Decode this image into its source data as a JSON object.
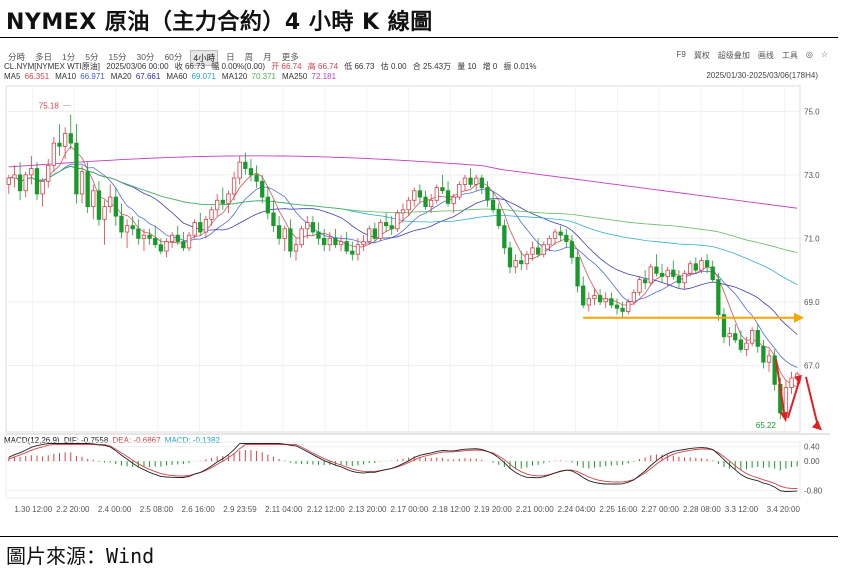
{
  "title": "NYMEX 原油（主力合約）4 小時 K 線圖",
  "source": "圖片來源：Wind",
  "toolbar": {
    "periods": [
      "分時",
      "多日",
      "1分",
      "5分",
      "15分",
      "30分",
      "60分",
      "4小時",
      "日",
      "周",
      "月",
      "更多"
    ],
    "active": "4小時",
    "right_items": [
      "F9",
      "冀权",
      "超级叠加",
      "画线",
      "工具",
      "◎",
      "☆"
    ]
  },
  "info": {
    "symbol": "CL.NYM[NYMEX WTI原油]",
    "datetime": "2025/03/06 00:00",
    "close": "收 66.73",
    "change": "幅 0.00%(0.00)",
    "open": "开 66.74",
    "high": "高 66.74",
    "low": "低 66.73",
    "chg": "估 0.00",
    "amount": "合 25.43万",
    "volume": "量 10",
    "oi_change": "增 0",
    "swing": "振 0.01%"
  },
  "date_range": "2025/01/30-2025/03/06(178H4)",
  "ma_legend": [
    {
      "label": "MA5",
      "value": "66.351",
      "color": "#d6404a"
    },
    {
      "label": "MA10",
      "value": "66.971",
      "color": "#3f5bd8"
    },
    {
      "label": "MA20",
      "value": "67.661",
      "color": "#2b2ba8"
    },
    {
      "label": "MA60",
      "value": "69.071",
      "color": "#1fa5c9"
    },
    {
      "label": "MA120",
      "value": "70.371",
      "color": "#52b152"
    },
    {
      "label": "MA250",
      "value": "72.181",
      "color": "#c040c0"
    }
  ],
  "macd_legend": {
    "name": "MACD(12,26,9)",
    "dif": "DIF: -0.7558",
    "dea": "DEA: -0.6867",
    "macd": "MACD: -0.1382",
    "dif_color": "#222222",
    "dea_color": "#d6404a",
    "macd_color": "#1fa5c9"
  },
  "colors": {
    "up": "#d6404a",
    "down": "#189a2a",
    "arrow_orange": "#f5a600",
    "arrow_red": "#e02020"
  },
  "chart_data": {
    "type": "candlestick",
    "title": "NYMEX 原油（主力合約）4 小時 K 線圖",
    "ylim": [
      64.9,
      75.8
    ],
    "price_ticks": [
      "75.0",
      "73.0",
      "71.0",
      "69.0",
      "67.0"
    ],
    "macd_ylim": [
      -1.0,
      0.52
    ],
    "macd_ticks": [
      "0.40",
      "0.00",
      "-0.80"
    ],
    "x_ticks": [
      "1.30 12:00",
      "2.2 20:00",
      "2.4 00:00",
      "2.5 08:00",
      "2.6 16:00",
      "2.9 23:59",
      "2.11 04:00",
      "2.12 12:00",
      "2.13 20:00",
      "2.17 00:00",
      "2.18 12:00",
      "2.19 20:00",
      "2.21 00:00",
      "2.24 04:00",
      "2.25 16:00",
      "2.27 00:00",
      "2.28 08:00",
      "3.3 12:00",
      "3.4 20:00"
    ],
    "max_label": "75.18",
    "min_label": "65.22",
    "candles": [
      [
        72.7,
        73.0,
        72.4,
        72.9
      ],
      [
        72.9,
        73.3,
        72.6,
        73.0
      ],
      [
        73.0,
        73.4,
        72.2,
        72.5
      ],
      [
        72.5,
        73.1,
        72.3,
        73.0
      ],
      [
        73.0,
        73.6,
        72.7,
        73.2
      ],
      [
        73.2,
        73.4,
        72.2,
        72.4
      ],
      [
        72.4,
        72.9,
        72.0,
        72.8
      ],
      [
        72.8,
        73.5,
        72.6,
        73.3
      ],
      [
        73.3,
        74.2,
        73.1,
        74.0
      ],
      [
        74.0,
        74.6,
        73.6,
        73.9
      ],
      [
        73.9,
        74.5,
        73.5,
        74.3
      ],
      [
        74.3,
        74.9,
        73.8,
        74.0
      ],
      [
        74.0,
        74.6,
        72.1,
        72.4
      ],
      [
        72.4,
        73.3,
        72.1,
        73.1
      ],
      [
        73.1,
        73.4,
        71.8,
        72.0
      ],
      [
        72.0,
        72.7,
        71.6,
        72.5
      ],
      [
        72.5,
        72.8,
        71.4,
        71.6
      ],
      [
        71.6,
        72.2,
        70.8,
        72.0
      ],
      [
        72.0,
        72.7,
        71.8,
        72.3
      ],
      [
        72.3,
        72.6,
        71.4,
        71.7
      ],
      [
        71.7,
        72.1,
        71.0,
        71.2
      ],
      [
        71.2,
        71.6,
        70.7,
        71.4
      ],
      [
        71.4,
        71.7,
        71.1,
        71.3
      ],
      [
        71.3,
        71.6,
        70.8,
        71.0
      ],
      [
        71.0,
        71.3,
        70.6,
        71.1
      ],
      [
        71.1,
        71.3,
        70.8,
        71.0
      ],
      [
        71.0,
        71.4,
        70.7,
        70.8
      ],
      [
        70.8,
        71.0,
        70.5,
        70.6
      ],
      [
        70.6,
        71.0,
        70.4,
        70.9
      ],
      [
        70.9,
        71.2,
        70.7,
        71.1
      ],
      [
        71.1,
        71.4,
        70.8,
        70.9
      ],
      [
        70.9,
        71.2,
        70.6,
        70.7
      ],
      [
        70.7,
        71.2,
        70.6,
        71.1
      ],
      [
        71.1,
        71.6,
        71.0,
        71.5
      ],
      [
        71.5,
        71.8,
        71.1,
        71.2
      ],
      [
        71.2,
        71.7,
        71.0,
        71.6
      ],
      [
        71.6,
        72.0,
        71.4,
        71.9
      ],
      [
        71.9,
        72.4,
        71.7,
        72.2
      ],
      [
        72.2,
        72.6,
        71.9,
        72.1
      ],
      [
        72.1,
        72.5,
        71.8,
        72.4
      ],
      [
        72.4,
        73.1,
        72.2,
        72.9
      ],
      [
        72.9,
        73.6,
        72.7,
        73.4
      ],
      [
        73.4,
        73.7,
        73.0,
        73.2
      ],
      [
        73.2,
        73.5,
        72.8,
        73.0
      ],
      [
        73.0,
        73.3,
        72.6,
        72.8
      ],
      [
        72.8,
        73.0,
        72.1,
        72.3
      ],
      [
        72.3,
        72.6,
        71.6,
        71.8
      ],
      [
        71.8,
        72.2,
        71.2,
        71.4
      ],
      [
        71.4,
        71.7,
        70.8,
        71.0
      ],
      [
        71.0,
        71.4,
        70.6,
        71.3
      ],
      [
        71.3,
        71.6,
        70.4,
        70.6
      ],
      [
        70.6,
        71.0,
        70.3,
        70.8
      ],
      [
        70.8,
        71.4,
        70.7,
        71.3
      ],
      [
        71.3,
        71.7,
        71.0,
        71.5
      ],
      [
        71.5,
        71.7,
        71.1,
        71.2
      ],
      [
        71.2,
        71.5,
        70.8,
        71.0
      ],
      [
        71.0,
        71.3,
        70.6,
        70.8
      ],
      [
        70.8,
        71.2,
        70.6,
        71.0
      ],
      [
        71.0,
        71.3,
        70.7,
        70.8
      ],
      [
        70.8,
        71.1,
        70.6,
        70.9
      ],
      [
        70.9,
        71.2,
        70.5,
        70.6
      ],
      [
        70.6,
        70.9,
        70.3,
        70.5
      ],
      [
        70.5,
        71.0,
        70.3,
        70.8
      ],
      [
        70.8,
        71.1,
        70.6,
        70.9
      ],
      [
        70.9,
        71.4,
        70.8,
        71.3
      ],
      [
        71.3,
        71.5,
        70.9,
        71.0
      ],
      [
        71.0,
        71.6,
        70.9,
        71.5
      ],
      [
        71.5,
        71.8,
        71.2,
        71.4
      ],
      [
        71.4,
        71.7,
        71.1,
        71.3
      ],
      [
        71.3,
        71.9,
        71.2,
        71.8
      ],
      [
        71.8,
        72.1,
        71.5,
        71.9
      ],
      [
        71.9,
        72.3,
        71.7,
        72.2
      ],
      [
        72.2,
        72.6,
        72.0,
        72.5
      ],
      [
        72.5,
        72.7,
        72.1,
        72.3
      ],
      [
        72.3,
        72.5,
        71.9,
        72.0
      ],
      [
        72.0,
        72.4,
        71.8,
        72.2
      ],
      [
        72.2,
        72.7,
        72.1,
        72.6
      ],
      [
        72.6,
        73.0,
        72.4,
        72.5
      ],
      [
        72.5,
        72.8,
        72.0,
        72.1
      ],
      [
        72.1,
        72.4,
        71.8,
        72.3
      ],
      [
        72.3,
        72.8,
        72.2,
        72.7
      ],
      [
        72.7,
        73.0,
        72.5,
        72.9
      ],
      [
        72.9,
        73.2,
        72.6,
        72.7
      ],
      [
        72.7,
        73.0,
        72.5,
        72.9
      ],
      [
        72.9,
        73.0,
        72.4,
        72.6
      ],
      [
        72.6,
        72.8,
        72.0,
        72.2
      ],
      [
        72.2,
        72.5,
        71.8,
        71.9
      ],
      [
        71.9,
        72.1,
        71.3,
        71.4
      ],
      [
        71.4,
        71.6,
        70.5,
        70.7
      ],
      [
        70.7,
        70.9,
        69.9,
        70.1
      ],
      [
        70.1,
        70.5,
        69.9,
        70.3
      ],
      [
        70.3,
        70.6,
        70.0,
        70.2
      ],
      [
        70.2,
        70.6,
        70.0,
        70.5
      ],
      [
        70.5,
        70.9,
        70.3,
        70.7
      ],
      [
        70.7,
        71.0,
        70.4,
        70.5
      ],
      [
        70.5,
        70.9,
        70.4,
        70.8
      ],
      [
        70.8,
        71.1,
        70.6,
        71.0
      ],
      [
        71.0,
        71.3,
        70.8,
        71.2
      ],
      [
        71.2,
        71.4,
        70.9,
        71.1
      ],
      [
        71.1,
        71.3,
        70.7,
        70.9
      ],
      [
        70.9,
        71.1,
        70.2,
        70.4
      ],
      [
        70.4,
        70.6,
        69.3,
        69.5
      ],
      [
        69.5,
        69.8,
        68.8,
        68.9
      ],
      [
        68.9,
        69.3,
        68.7,
        69.1
      ],
      [
        69.1,
        69.4,
        68.9,
        69.2
      ],
      [
        69.2,
        69.4,
        68.9,
        69.0
      ],
      [
        69.0,
        69.3,
        68.8,
        69.1
      ],
      [
        69.1,
        69.3,
        68.8,
        68.9
      ],
      [
        68.9,
        69.1,
        68.6,
        68.8
      ],
      [
        68.8,
        69.0,
        68.5,
        68.7
      ],
      [
        68.7,
        69.1,
        68.6,
        69.0
      ],
      [
        69.0,
        69.4,
        68.9,
        69.3
      ],
      [
        69.3,
        69.8,
        69.2,
        69.7
      ],
      [
        69.7,
        70.0,
        69.4,
        69.6
      ],
      [
        69.6,
        70.2,
        69.5,
        70.1
      ],
      [
        70.1,
        70.5,
        69.8,
        69.9
      ],
      [
        69.9,
        70.2,
        69.6,
        69.8
      ],
      [
        69.8,
        70.1,
        69.5,
        70.0
      ],
      [
        70.0,
        70.3,
        69.7,
        69.8
      ],
      [
        69.8,
        70.0,
        69.4,
        69.6
      ],
      [
        69.6,
        70.0,
        69.4,
        69.9
      ],
      [
        69.9,
        70.3,
        69.8,
        70.2
      ],
      [
        70.2,
        70.4,
        69.9,
        70.0
      ],
      [
        70.0,
        70.4,
        69.9,
        70.3
      ],
      [
        70.3,
        70.5,
        69.9,
        70.1
      ],
      [
        70.1,
        70.3,
        69.6,
        69.7
      ],
      [
        69.7,
        69.9,
        68.4,
        68.6
      ],
      [
        68.6,
        68.8,
        67.7,
        67.9
      ],
      [
        67.9,
        68.2,
        67.6,
        68.0
      ],
      [
        68.0,
        68.3,
        67.7,
        67.8
      ],
      [
        67.8,
        68.1,
        67.4,
        67.5
      ],
      [
        67.5,
        67.9,
        67.3,
        67.7
      ],
      [
        67.7,
        68.2,
        67.6,
        68.1
      ],
      [
        68.1,
        68.3,
        67.4,
        67.6
      ],
      [
        67.6,
        67.8,
        66.9,
        67.1
      ],
      [
        67.1,
        67.5,
        66.8,
        67.3
      ],
      [
        67.3,
        67.5,
        66.2,
        66.4
      ],
      [
        66.4,
        66.6,
        65.3,
        65.5
      ],
      [
        65.5,
        66.5,
        65.22,
        66.3
      ],
      [
        66.3,
        66.8,
        66.1,
        66.6
      ],
      [
        66.6,
        66.8,
        66.4,
        66.73
      ]
    ],
    "macd_hist": [
      0.1,
      0.12,
      0.12,
      0.14,
      0.16,
      0.15,
      0.13,
      0.16,
      0.2,
      0.22,
      0.24,
      0.24,
      0.14,
      0.12,
      0.06,
      0.04,
      -0.02,
      -0.04,
      -0.04,
      -0.08,
      -0.12,
      -0.14,
      -0.16,
      -0.17,
      -0.16,
      -0.16,
      -0.15,
      -0.15,
      -0.12,
      -0.1,
      -0.09,
      -0.08,
      -0.05,
      0.0,
      0.01,
      0.05,
      0.09,
      0.13,
      0.14,
      0.17,
      0.22,
      0.28,
      0.3,
      0.3,
      0.28,
      0.24,
      0.18,
      0.12,
      0.06,
      0.02,
      -0.04,
      -0.07,
      -0.08,
      -0.08,
      -0.09,
      -0.1,
      -0.11,
      -0.1,
      -0.11,
      -0.1,
      -0.12,
      -0.13,
      -0.11,
      -0.09,
      -0.05,
      -0.05,
      -0.01,
      0.0,
      0.01,
      0.04,
      0.07,
      0.1,
      0.13,
      0.12,
      0.1,
      0.09,
      0.1,
      0.09,
      0.06,
      0.05,
      0.07,
      0.08,
      0.07,
      0.07,
      0.04,
      0.0,
      -0.04,
      -0.1,
      -0.16,
      -0.22,
      -0.22,
      -0.2,
      -0.17,
      -0.12,
      -0.1,
      -0.06,
      -0.02,
      0.01,
      0.02,
      0.01,
      -0.04,
      -0.12,
      -0.18,
      -0.2,
      -0.18,
      -0.16,
      -0.14,
      -0.12,
      -0.11,
      -0.1,
      -0.06,
      -0.02,
      0.06,
      0.1,
      0.16,
      0.18,
      0.18,
      0.17,
      0.15,
      0.12,
      0.1,
      0.1,
      0.09,
      0.08,
      0.06,
      0.02,
      -0.08,
      -0.16,
      -0.2,
      -0.22,
      -0.24,
      -0.22,
      -0.18,
      -0.16,
      -0.18,
      -0.17,
      -0.2,
      -0.25,
      -0.2,
      -0.16,
      -0.14
    ]
  }
}
